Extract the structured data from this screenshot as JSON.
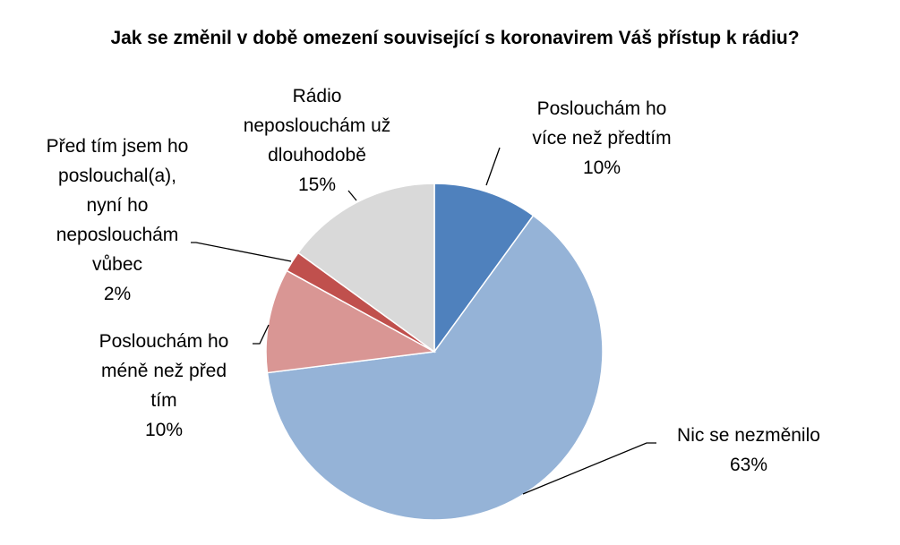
{
  "chart_data": {
    "type": "pie",
    "title": "Jak se změnil v době omezení související s koronavirem Váš přístup k rádiu?",
    "start_angle_deg": 0,
    "direction": "clockwise",
    "slices": [
      {
        "lines": [
          "Poslouchám ho",
          "více než předtím"
        ],
        "value": 10,
        "value_label": "10%",
        "color": "#4f81bd"
      },
      {
        "lines": [
          "Nic se nezměnilo"
        ],
        "value": 63,
        "value_label": "63%",
        "color": "#95b3d7"
      },
      {
        "lines": [
          "Poslouchám ho",
          "méně než před",
          "tím"
        ],
        "value": 10,
        "value_label": "10%",
        "color": "#d99694"
      },
      {
        "lines": [
          "Před tím jsem ho",
          "poslouchal(a),",
          "nyní ho",
          "neposlouchám",
          "vůbec"
        ],
        "value": 2,
        "value_label": "2%",
        "color": "#c0504d"
      },
      {
        "lines": [
          "Rádio",
          "neposlouchám už",
          "dlouhodobě"
        ],
        "value": 15,
        "value_label": "15%",
        "color": "#d9d9d9"
      }
    ]
  }
}
